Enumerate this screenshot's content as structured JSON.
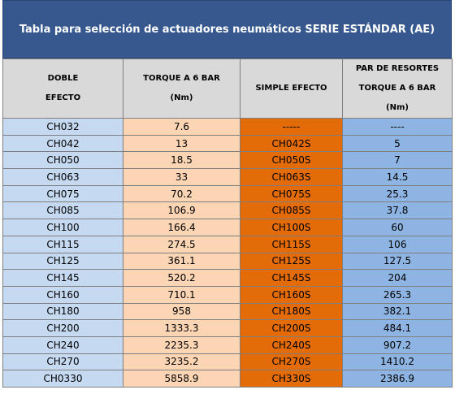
{
  "title": "Tabla para selección de actuadores neumáticos  SERIE ESTÁNDAR (AE)",
  "colors": {
    "title_bg": "#36588f",
    "header_bg": "#d9d9d9",
    "model_bg": "#c5d9f1",
    "torque_bg": "#fcd5b4",
    "simple_bg": "#e36c09",
    "spring_bg": "#8db4e2"
  },
  "headers": {
    "doble": [
      "DOBLE",
      "EFECTO"
    ],
    "torque": [
      "TORQUE A 6 BAR",
      "(Nm)"
    ],
    "simple": [
      "SIMPLE EFECTO"
    ],
    "resortes": [
      "PAR DE RESORTES",
      "TORQUE A 6 BAR",
      "(Nm)"
    ]
  },
  "rows": [
    {
      "doble": "CH032",
      "torque": "7.6",
      "simple": "-----",
      "resortes": "----"
    },
    {
      "doble": "CH042",
      "torque": "13",
      "simple": "CH042S",
      "resortes": "5"
    },
    {
      "doble": "CH050",
      "torque": "18.5",
      "simple": "CH050S",
      "resortes": "7"
    },
    {
      "doble": "CH063",
      "torque": "33",
      "simple": "CH063S",
      "resortes": "14.5"
    },
    {
      "doble": "CH075",
      "torque": "70.2",
      "simple": "CH075S",
      "resortes": "25.3"
    },
    {
      "doble": "CH085",
      "torque": "106.9",
      "simple": "CH085S",
      "resortes": "37.8"
    },
    {
      "doble": "CH100",
      "torque": "166.4",
      "simple": "CH100S",
      "resortes": "60"
    },
    {
      "doble": "CH115",
      "torque": "274.5",
      "simple": "CH115S",
      "resortes": "106"
    },
    {
      "doble": "CH125",
      "torque": "361.1",
      "simple": "CH125S",
      "resortes": "127.5"
    },
    {
      "doble": "CH145",
      "torque": "520.2",
      "simple": "CH145S",
      "resortes": "204"
    },
    {
      "doble": "CH160",
      "torque": "710.1",
      "simple": "CH160S",
      "resortes": "265.3"
    },
    {
      "doble": "CH180",
      "torque": "958",
      "simple": "CH180S",
      "resortes": "382.1"
    },
    {
      "doble": "CH200",
      "torque": "1333.3",
      "simple": "CH200S",
      "resortes": "484.1"
    },
    {
      "doble": "CH240",
      "torque": "2235.3",
      "simple": "CH240S",
      "resortes": "907.2"
    },
    {
      "doble": "CH270",
      "torque": "3235.2",
      "simple": "CH270S",
      "resortes": "1410.2"
    },
    {
      "doble": "CH0330",
      "torque": "5858.9",
      "simple": "CH330S",
      "resortes": "2386.9"
    }
  ]
}
